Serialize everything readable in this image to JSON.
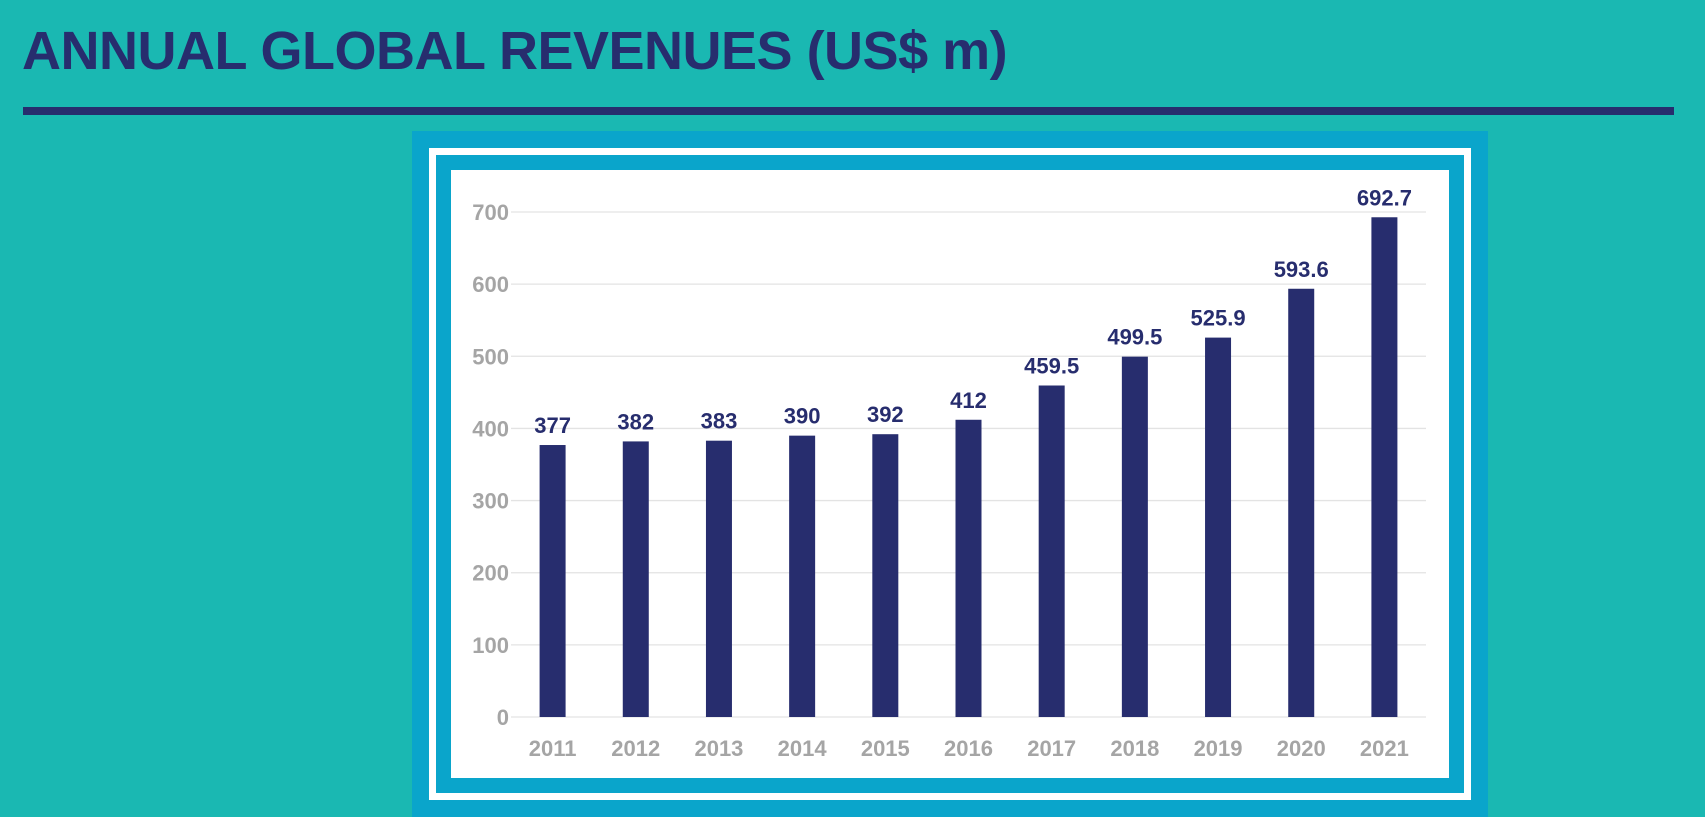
{
  "header": {
    "title": "ANNUAL GLOBAL REVENUES (US$ m)"
  },
  "colors": {
    "background": "#1ab8b2",
    "accent_navy": "#272d6e",
    "frame_blue": "#0aa5cb",
    "tick_gray": "#a5a5a5"
  },
  "chart_data": {
    "type": "bar",
    "title": "",
    "xlabel": "",
    "ylabel": "",
    "categories": [
      "2011",
      "2012",
      "2013",
      "2014",
      "2015",
      "2016",
      "2017",
      "2018",
      "2019",
      "2020",
      "2021"
    ],
    "values": [
      377,
      382,
      383,
      390,
      392,
      412,
      459.5,
      499.5,
      525.9,
      593.6,
      692.7
    ],
    "data_labels": [
      "377",
      "382",
      "383",
      "390",
      "392",
      "412",
      "459.5",
      "499.5",
      "525.9",
      "593.6",
      "692.7"
    ],
    "ylim": [
      0,
      700
    ],
    "yticks": [
      0,
      100,
      200,
      300,
      400,
      500,
      600,
      700
    ],
    "grid": true,
    "legend": "none"
  }
}
